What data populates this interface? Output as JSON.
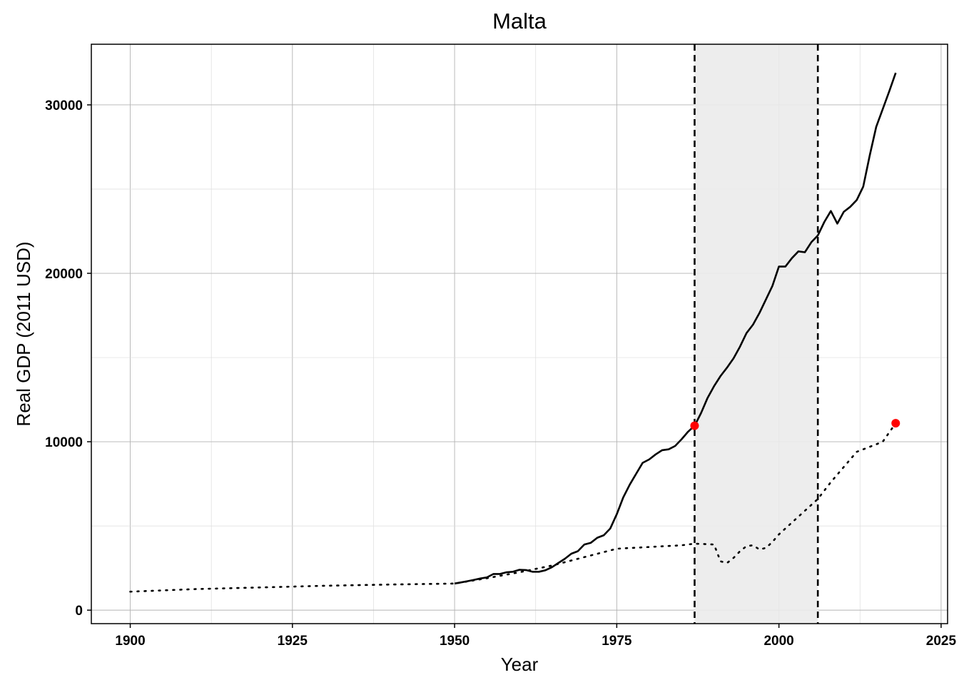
{
  "chart_data": {
    "type": "line",
    "title": "Malta",
    "xlabel": "Year",
    "ylabel": "Real GDP (2011 USD)",
    "xlim": [
      1894,
      2026
    ],
    "ylim": [
      -800,
      33600
    ],
    "x_ticks": [
      1900,
      1925,
      1950,
      1975,
      2000,
      2025
    ],
    "y_ticks": [
      0,
      10000,
      20000,
      30000
    ],
    "grid": true,
    "legend": "none",
    "shaded_region": {
      "x_start": 1987,
      "x_end": 2006,
      "color": "#ebebeb"
    },
    "vlines": [
      1987,
      2006
    ],
    "colors": {
      "line": "#000000",
      "point": "#ff0000",
      "shade": "#ebebeb"
    },
    "series": [
      {
        "style": "solid",
        "x": [
          1950,
          1951,
          1952,
          1953,
          1954,
          1955,
          1956,
          1957,
          1958,
          1959,
          1960,
          1961,
          1962,
          1963,
          1964,
          1965,
          1966,
          1967,
          1968,
          1969,
          1970,
          1971,
          1972,
          1973,
          1974,
          1975,
          1976,
          1977,
          1978,
          1979,
          1980,
          1981,
          1982,
          1983,
          1984,
          1985,
          1986,
          1987,
          1988,
          1989,
          1990,
          1991,
          1992,
          1993,
          1994,
          1995,
          1996,
          1997,
          1998,
          1999,
          2000,
          2001,
          2002,
          2003,
          2004,
          2005,
          2006,
          2007,
          2008,
          2009,
          2010,
          2011,
          2012,
          2013,
          2014,
          2015,
          2016,
          2017,
          2018
        ],
        "y": [
          1580,
          1650,
          1720,
          1800,
          1880,
          1950,
          2150,
          2150,
          2250,
          2280,
          2400,
          2380,
          2280,
          2280,
          2370,
          2550,
          2800,
          3050,
          3350,
          3500,
          3900,
          4000,
          4300,
          4450,
          4850,
          5700,
          6700,
          7450,
          8100,
          8750,
          8950,
          9250,
          9500,
          9550,
          9750,
          10150,
          10600,
          10950,
          11700,
          12600,
          13300,
          13900,
          14400,
          14950,
          15650,
          16450,
          16950,
          17650,
          18450,
          19250,
          20400,
          20400,
          20900,
          21300,
          21250,
          21850,
          22250,
          23050,
          23700,
          22950,
          23650,
          23950,
          24350,
          25150,
          27000,
          28700,
          29750,
          30800,
          31900
        ]
      },
      {
        "style": "dotted",
        "x": [
          1900,
          1910,
          1920,
          1930,
          1940,
          1950,
          1955,
          1960,
          1965,
          1970,
          1975,
          1980,
          1985,
          1987,
          1990,
          1991,
          1992,
          1993,
          1994,
          1995,
          1996,
          1997,
          1998,
          1999,
          2000,
          2002,
          2004,
          2006,
          2008,
          2010,
          2012,
          2014,
          2016,
          2018
        ],
        "y": [
          1100,
          1250,
          1350,
          1450,
          1520,
          1580,
          1900,
          2250,
          2650,
          3150,
          3650,
          3750,
          3850,
          3950,
          3900,
          2900,
          2800,
          3100,
          3500,
          3800,
          3850,
          3600,
          3700,
          4050,
          4500,
          5200,
          5900,
          6600,
          7600,
          8500,
          9400,
          9700,
          10000,
          11100
        ]
      }
    ],
    "points": [
      {
        "x": 1987,
        "y": 10950
      },
      {
        "x": 2018,
        "y": 11100
      }
    ]
  }
}
